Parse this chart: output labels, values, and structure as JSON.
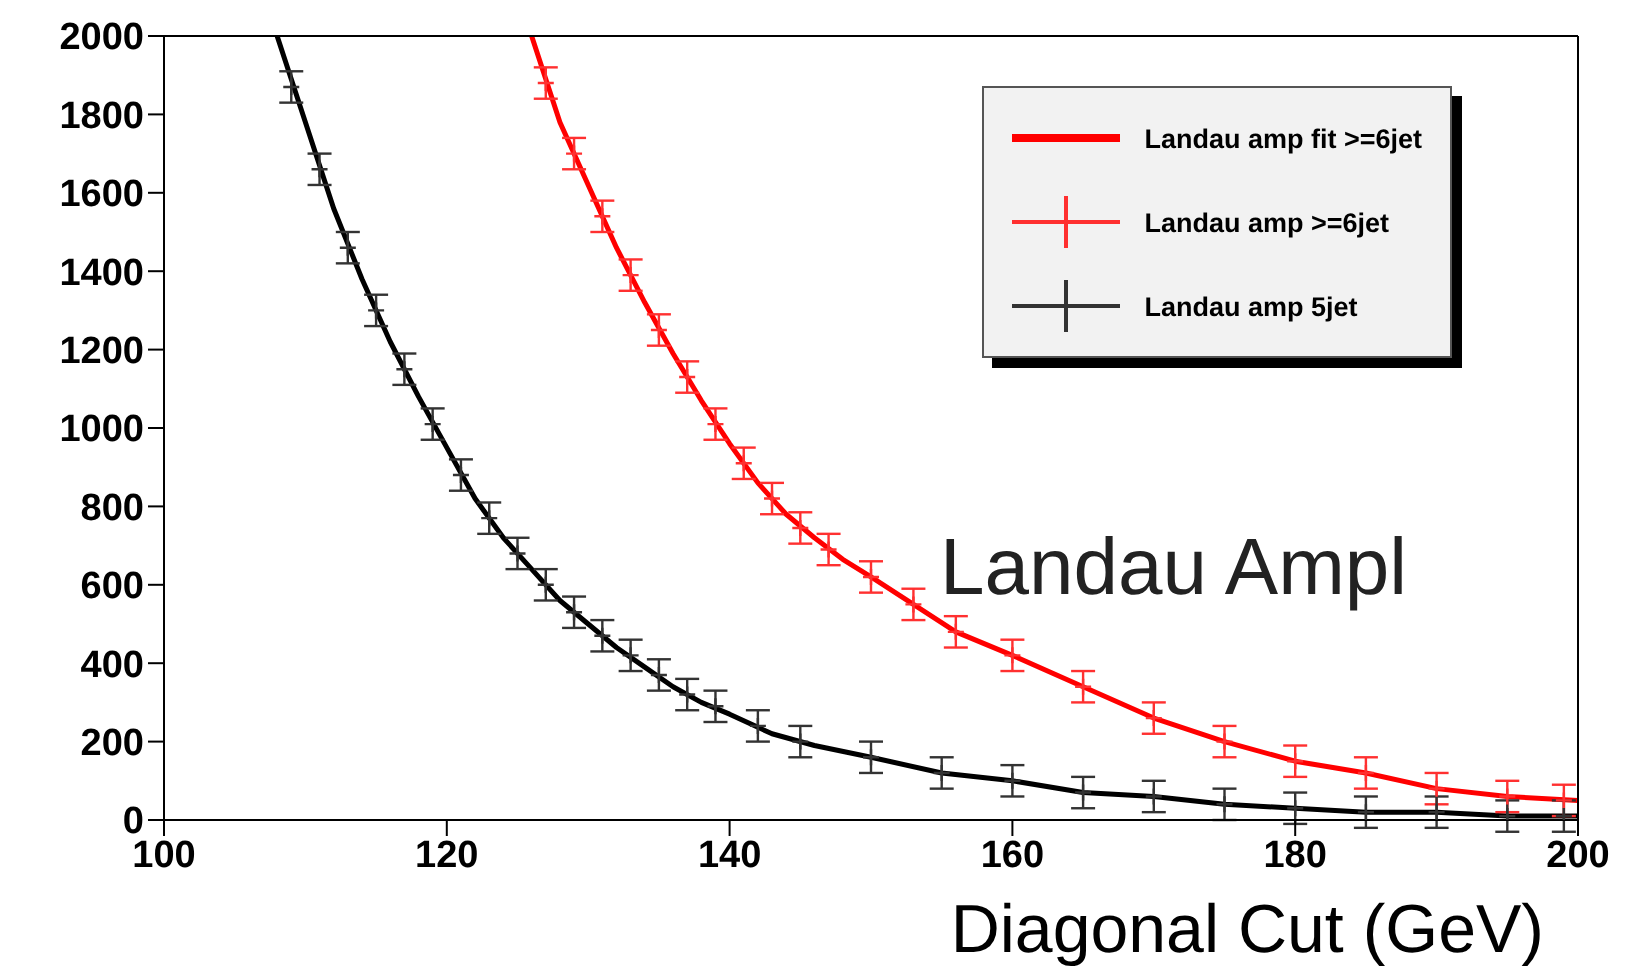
{
  "chart_data": {
    "type": "line",
    "xlabel": "Diagonal Cut (GeV)",
    "annotations": [
      "Landau Ampl"
    ],
    "xlim": [
      100,
      200
    ],
    "xticks": [
      100,
      120,
      140,
      160,
      180,
      200
    ],
    "ylim": [
      0,
      2000
    ],
    "yticks": [
      0,
      200,
      400,
      600,
      800,
      1000,
      1200,
      1400,
      1600,
      1800,
      2000
    ],
    "legend": "top right",
    "series": [
      {
        "name": "Landau amp fit >=6jet",
        "color": "#ff0000",
        "x": [
          126,
          128,
          130,
          132,
          134,
          136,
          138,
          140,
          142,
          144,
          146,
          148,
          150,
          153,
          156,
          160,
          165,
          170,
          175,
          180,
          185,
          190,
          195,
          200
        ],
        "values": [
          2000,
          1780,
          1620,
          1460,
          1320,
          1190,
          1070,
          960,
          860,
          780,
          720,
          665,
          620,
          550,
          480,
          420,
          340,
          260,
          200,
          150,
          120,
          80,
          60,
          50
        ]
      },
      {
        "name": "Landau amp >=6jet",
        "type": "scatter",
        "marker": "cross",
        "color": "#ff3030",
        "x": [
          127,
          129,
          131,
          133,
          135,
          137,
          139,
          141,
          143,
          145,
          147,
          150,
          153,
          156,
          160,
          165,
          170,
          175,
          180,
          185,
          190,
          195,
          199
        ],
        "values": [
          1880,
          1700,
          1540,
          1390,
          1250,
          1130,
          1010,
          910,
          820,
          745,
          690,
          620,
          550,
          480,
          420,
          340,
          260,
          200,
          150,
          120,
          80,
          60,
          50
        ],
        "errors": [
          40,
          40,
          40,
          40,
          40,
          40,
          40,
          40,
          40,
          40,
          40,
          40,
          40,
          40,
          40,
          40,
          40,
          40,
          40,
          40,
          40,
          40,
          40
        ]
      },
      {
        "name": "Landau amp 5jet",
        "type": "scatter",
        "marker": "cross",
        "color": "#333333",
        "x": [
          109,
          111,
          113,
          115,
          117,
          119,
          121,
          123,
          125,
          127,
          129,
          131,
          133,
          135,
          137,
          139,
          142,
          145,
          150,
          155,
          160,
          165,
          170,
          175,
          180,
          185,
          190,
          195,
          199
        ],
        "values": [
          1870,
          1660,
          1460,
          1300,
          1150,
          1010,
          880,
          770,
          680,
          600,
          530,
          470,
          420,
          370,
          320,
          290,
          240,
          200,
          160,
          120,
          100,
          70,
          60,
          40,
          30,
          20,
          20,
          10,
          10
        ],
        "errors": [
          40,
          40,
          40,
          40,
          40,
          40,
          40,
          40,
          40,
          40,
          40,
          40,
          40,
          40,
          40,
          40,
          40,
          40,
          40,
          40,
          40,
          40,
          40,
          40,
          40,
          40,
          40,
          40,
          40
        ]
      },
      {
        "color": "#000000",
        "x": [
          108,
          110,
          112,
          114,
          116,
          118,
          120,
          122,
          124,
          126,
          128,
          130,
          132,
          134,
          136,
          138,
          140,
          143,
          146,
          150,
          155,
          160,
          165,
          170,
          175,
          180,
          185,
          190,
          195,
          200
        ],
        "values": [
          2000,
          1780,
          1560,
          1380,
          1220,
          1080,
          950,
          820,
          720,
          640,
          560,
          500,
          440,
          390,
          340,
          300,
          270,
          220,
          190,
          160,
          120,
          100,
          70,
          60,
          40,
          30,
          20,
          20,
          10,
          10
        ]
      }
    ]
  }
}
